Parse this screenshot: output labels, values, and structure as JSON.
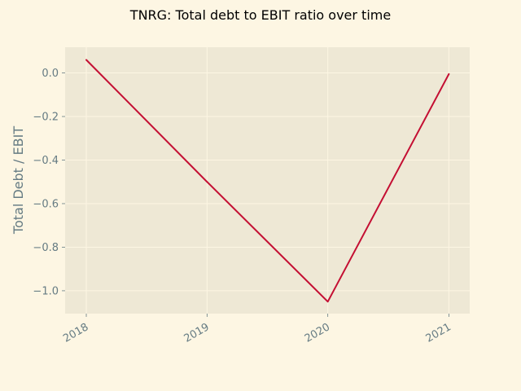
{
  "colors": {
    "background": "#fdf6e3",
    "plot_background": "#eee8d5",
    "grid": "#fdf6e3",
    "text": "#657b83",
    "title": "#000000",
    "series": "#c40f33"
  },
  "chart_data": {
    "type": "line",
    "title": "TNRG: Total debt to EBIT ratio over time",
    "xlabel": "",
    "ylabel": "Total Debt / EBIT",
    "x": [
      "2018",
      "2019",
      "2020",
      "2021"
    ],
    "series": [
      {
        "values": [
          0.06,
          -0.5,
          -1.05,
          -0.005
        ]
      }
    ],
    "x_ticks": [
      "2018",
      "2019",
      "2020",
      "2021"
    ],
    "y_ticks": [
      0.0,
      -0.2,
      -0.4,
      -0.6,
      -0.8,
      -1.0
    ],
    "y_tick_labels": [
      "0.0",
      "−0.2",
      "−0.4",
      "−0.6",
      "−0.8",
      "−1.0"
    ],
    "ylim": [
      -1.105,
      0.118
    ],
    "xlim": [
      "2017-10-29",
      "2021-03-05"
    ],
    "grid": true,
    "legend": "none"
  }
}
